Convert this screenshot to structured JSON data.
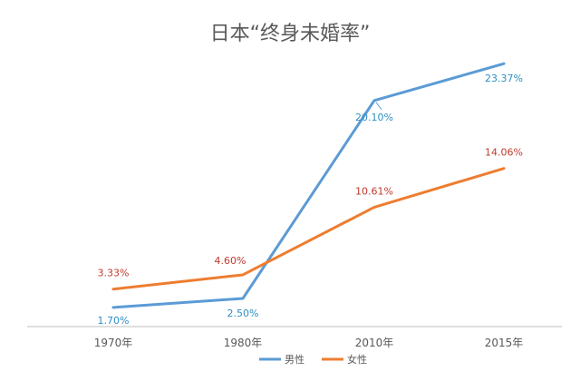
{
  "chart_data": {
    "type": "line",
    "title": "日本“终身未婚率”",
    "categories": [
      "1970年",
      "1980年",
      "2010年",
      "2015年"
    ],
    "series": [
      {
        "name": "男性",
        "values": [
          1.7,
          2.5,
          20.1,
          23.37
        ],
        "labels": [
          "1.70%",
          "2.50%",
          "20.10%",
          "23.37%"
        ],
        "color": "#5b9bd5",
        "label_color": "#2e8fc4"
      },
      {
        "name": "女性",
        "values": [
          3.33,
          4.6,
          10.61,
          14.06
        ],
        "labels": [
          "3.33%",
          "4.60%",
          "10.61%",
          "14.06%"
        ],
        "color": "#ed7d31",
        "label_color": "#c0392b"
      }
    ],
    "ylim": [
      0,
      25
    ],
    "grid": false,
    "legend_position": "bottom",
    "axis_color": "#bfbfbf"
  }
}
